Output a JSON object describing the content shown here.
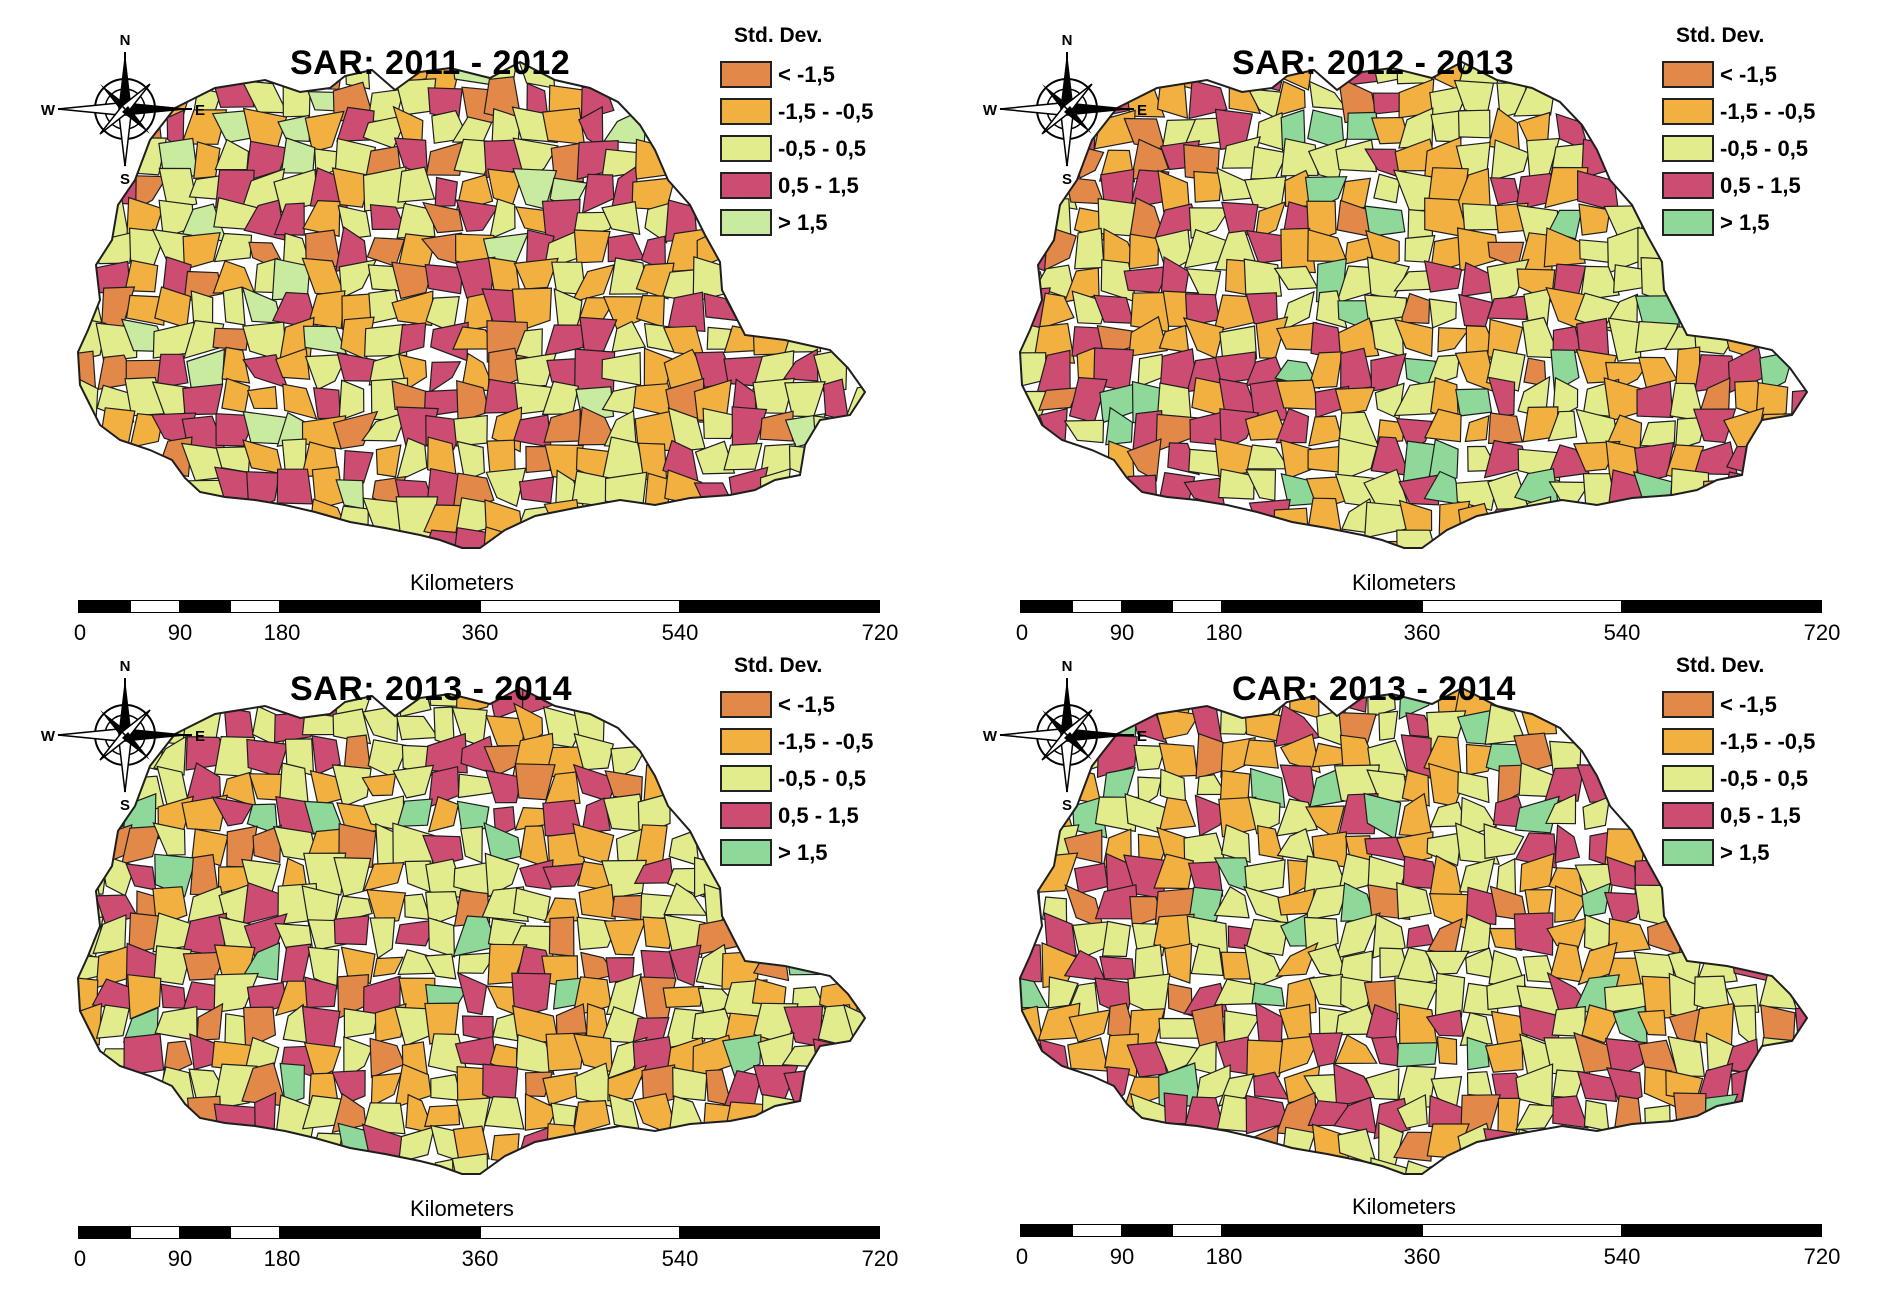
{
  "colors": {
    "lt_neg_1_5": "#e2894a",
    "neg_1_5_to_neg_0_5": "#f2b040",
    "neg_0_5_to_0_5": "#e3ec8c",
    "0_5_to_1_5": "#cc4c72",
    "gt_1_5_light": "#c9eba0",
    "gt_1_5": "#8ed89a",
    "boundary": "#1e1e1e"
  },
  "compass": {
    "n": "N",
    "s": "S",
    "w": "W",
    "e": "E"
  },
  "legend": {
    "title": "Std. Dev.",
    "classes": [
      "< -1,5",
      "-1,5 - -0,5",
      "-0,5 - 0,5",
      "0,5 - 1,5",
      "> 1,5"
    ]
  },
  "scalebar": {
    "label": "Kilometers",
    "ticks": [
      "0",
      "90",
      "180",
      "360",
      "540",
      "720"
    ]
  },
  "panels": [
    {
      "title": "SAR: 2011 - 2012",
      "gt_color": "gt_1_5_light"
    },
    {
      "title": "SAR: 2012 - 2013",
      "gt_color": "gt_1_5"
    },
    {
      "title": "SAR: 2013 - 2014",
      "gt_color": "gt_1_5"
    },
    {
      "title": "CAR: 2013 - 2014",
      "gt_color": "gt_1_5"
    }
  ]
}
